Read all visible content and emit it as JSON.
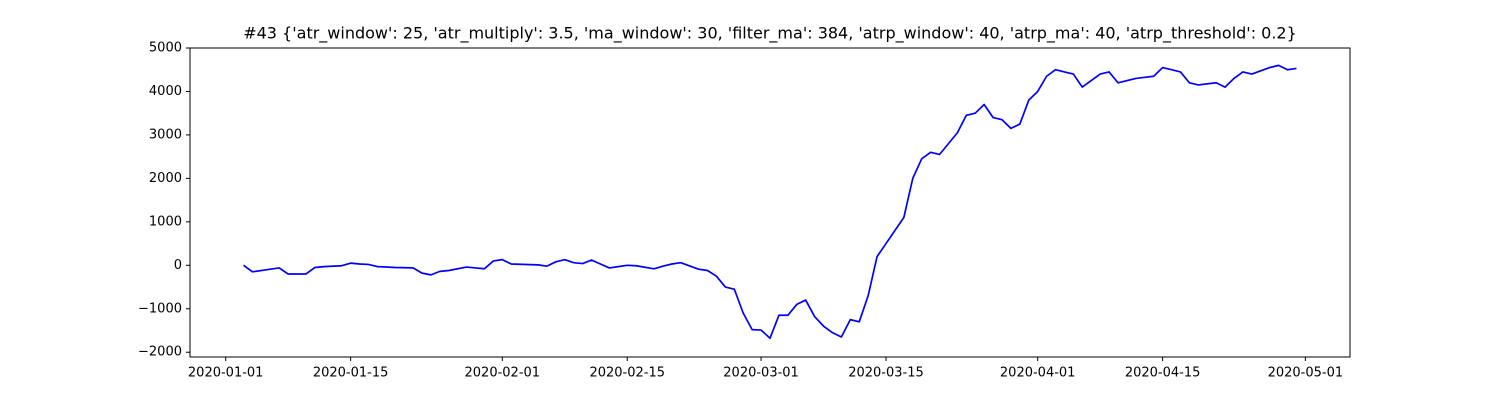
{
  "chart_data": {
    "type": "line",
    "title": "#43 {'atr_window': 25, 'atr_multiply': 3.5, 'ma_window': 30, 'filter_ma': 384, 'atrp_window': 40, 'atrp_ma': 40, 'atrp_threshold': 0.2}",
    "x": [
      "2020-01-03",
      "2020-01-04",
      "2020-01-06",
      "2020-01-07",
      "2020-01-08",
      "2020-01-09",
      "2020-01-10",
      "2020-01-11",
      "2020-01-12",
      "2020-01-14",
      "2020-01-15",
      "2020-01-16",
      "2020-01-17",
      "2020-01-18",
      "2020-01-20",
      "2020-01-22",
      "2020-01-23",
      "2020-01-24",
      "2020-01-25",
      "2020-01-26",
      "2020-01-28",
      "2020-01-29",
      "2020-01-30",
      "2020-01-31",
      "2020-02-01",
      "2020-02-02",
      "2020-02-05",
      "2020-02-06",
      "2020-02-07",
      "2020-02-08",
      "2020-02-09",
      "2020-02-10",
      "2020-02-11",
      "2020-02-12",
      "2020-02-13",
      "2020-02-14",
      "2020-02-15",
      "2020-02-16",
      "2020-02-18",
      "2020-02-19",
      "2020-02-20",
      "2020-02-21",
      "2020-02-23",
      "2020-02-24",
      "2020-02-25",
      "2020-02-26",
      "2020-02-27",
      "2020-02-28",
      "2020-02-29",
      "2020-03-01",
      "2020-03-02",
      "2020-03-03",
      "2020-03-04",
      "2020-03-05",
      "2020-03-06",
      "2020-03-07",
      "2020-03-08",
      "2020-03-09",
      "2020-03-10",
      "2020-03-11",
      "2020-03-12",
      "2020-03-13",
      "2020-03-14",
      "2020-03-15",
      "2020-03-16",
      "2020-03-17",
      "2020-03-18",
      "2020-03-19",
      "2020-03-20",
      "2020-03-21",
      "2020-03-22",
      "2020-03-23",
      "2020-03-24",
      "2020-03-25",
      "2020-03-26",
      "2020-03-27",
      "2020-03-28",
      "2020-03-29",
      "2020-03-30",
      "2020-03-31",
      "2020-04-01",
      "2020-04-02",
      "2020-04-03",
      "2020-04-04",
      "2020-04-05",
      "2020-04-06",
      "2020-04-07",
      "2020-04-08",
      "2020-04-09",
      "2020-04-10",
      "2020-04-12",
      "2020-04-14",
      "2020-04-15",
      "2020-04-16",
      "2020-04-17",
      "2020-04-18",
      "2020-04-19",
      "2020-04-21",
      "2020-04-22",
      "2020-04-23",
      "2020-04-24",
      "2020-04-25",
      "2020-04-27",
      "2020-04-28",
      "2020-04-29",
      "2020-04-30"
    ],
    "series": [
      {
        "color": "#0000ff",
        "values": [
          0,
          -150,
          -90,
          -60,
          -200,
          -200,
          -200,
          -50,
          -30,
          -10,
          50,
          30,
          20,
          -30,
          -50,
          -60,
          -180,
          -220,
          -140,
          -120,
          -40,
          -60,
          -80,
          100,
          130,
          30,
          10,
          -20,
          80,
          130,
          60,
          40,
          120,
          30,
          -60,
          -30,
          0,
          -10,
          -80,
          -20,
          30,
          60,
          -90,
          -120,
          -250,
          -500,
          -550,
          -1100,
          -1480,
          -1490,
          -1680,
          -1150,
          -1150,
          -900,
          -800,
          -1180,
          -1400,
          -1550,
          -1650,
          -1250,
          -1300,
          -700,
          200,
          500,
          800,
          1100,
          2000,
          2450,
          2600,
          2550,
          2800,
          3050,
          3450,
          3500,
          3700,
          3400,
          3350,
          3150,
          3250,
          3800,
          4000,
          4350,
          4500,
          4450,
          4400,
          4100,
          4250,
          4400,
          4450,
          4200,
          4300,
          4350,
          4550,
          4500,
          4450,
          4200,
          4150,
          4200,
          4100,
          4300,
          4450,
          4400,
          4550,
          4600,
          4500,
          4530
        ]
      }
    ],
    "xlim": [
      "2019-12-28",
      "2020-05-06"
    ],
    "xticks": [
      "2020-01-01",
      "2020-01-15",
      "2020-02-01",
      "2020-02-15",
      "2020-03-01",
      "2020-03-15",
      "2020-04-01",
      "2020-04-15",
      "2020-05-01"
    ],
    "ylim": [
      -2110,
      5000
    ],
    "yticks": [
      {
        "value": -2000,
        "label": "−2000"
      },
      {
        "value": -1000,
        "label": "−1000"
      },
      0,
      1000,
      2000,
      3000,
      4000,
      5000
    ],
    "grid": false
  }
}
